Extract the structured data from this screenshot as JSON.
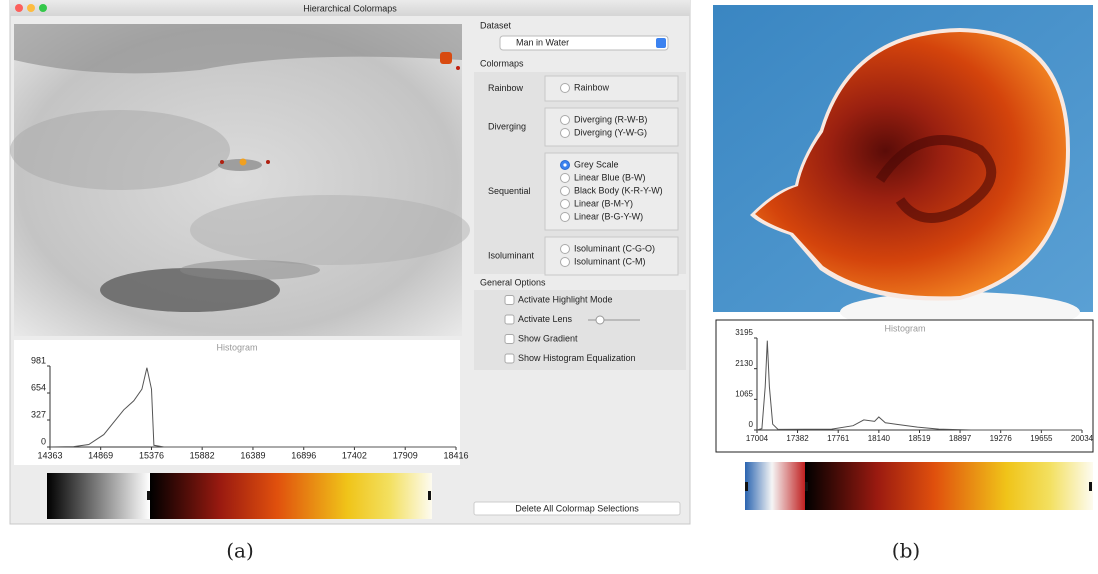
{
  "panel_a": {
    "window_title": "Hierarchical Colormaps",
    "histogram": {
      "title": "Histogram",
      "xlim": [
        14363,
        18416
      ],
      "ylim": [
        0,
        981
      ],
      "xticks": [
        14363,
        14869,
        15376,
        15882,
        16389,
        16896,
        17402,
        17909,
        18416
      ],
      "yticks": [
        0,
        327,
        654,
        981
      ],
      "curve": {
        "x": [
          14363,
          14600,
          14750,
          14900,
          15000,
          15100,
          15200,
          15280,
          15330,
          15376,
          15400,
          15500,
          16000,
          18416
        ],
        "y": [
          0,
          5,
          30,
          150,
          300,
          450,
          560,
          700,
          960,
          700,
          20,
          0,
          0,
          0
        ]
      }
    },
    "sidebar": {
      "dataset_label": "Dataset",
      "dataset_value": "Man in Water",
      "colormaps_label": "Colormaps",
      "groups": [
        {
          "name": "Rainbow",
          "options": [
            {
              "label": "Rainbow",
              "checked": false
            }
          ]
        },
        {
          "name": "Diverging",
          "options": [
            {
              "label": "Diverging (R-W-B)",
              "checked": false
            },
            {
              "label": "Diverging (Y-W-G)",
              "checked": false
            }
          ]
        },
        {
          "name": "Sequential",
          "options": [
            {
              "label": "Grey Scale",
              "checked": true
            },
            {
              "label": "Linear Blue (B-W)",
              "checked": false
            },
            {
              "label": "Black Body (K-R-Y-W)",
              "checked": false
            },
            {
              "label": "Linear (B-M-Y)",
              "checked": false
            },
            {
              "label": "Linear (B-G-Y-W)",
              "checked": false
            }
          ]
        },
        {
          "name": "Isoluminant",
          "options": [
            {
              "label": "Isoluminant (C-G-O)",
              "checked": false
            },
            {
              "label": "Isoluminant (C-M)",
              "checked": false
            }
          ]
        }
      ],
      "general_options_label": "General Options",
      "general_options": [
        "Activate Highlight Mode",
        "Activate Lens",
        "Show Gradient",
        "Show Histogram Equalization"
      ],
      "delete_button": "Delete All Colormap Selections"
    },
    "caption": "(a)"
  },
  "panel_b": {
    "histogram": {
      "title": "Histogram",
      "xlim": [
        17004,
        20034
      ],
      "ylim": [
        0,
        3195
      ],
      "xticks": [
        17004,
        17382,
        17761,
        18140,
        18519,
        18897,
        19276,
        19655,
        20034
      ],
      "yticks": [
        0,
        1065,
        2130,
        3195
      ],
      "curve": {
        "x": [
          17004,
          17050,
          17080,
          17100,
          17120,
          17150,
          17200,
          17700,
          17900,
          18000,
          18100,
          18140,
          18200,
          18300,
          18500,
          18700,
          19000,
          20034
        ],
        "y": [
          0,
          50,
          1500,
          3100,
          1500,
          200,
          20,
          30,
          150,
          350,
          300,
          450,
          250,
          200,
          100,
          30,
          0,
          0
        ]
      }
    },
    "caption": "(b)"
  }
}
